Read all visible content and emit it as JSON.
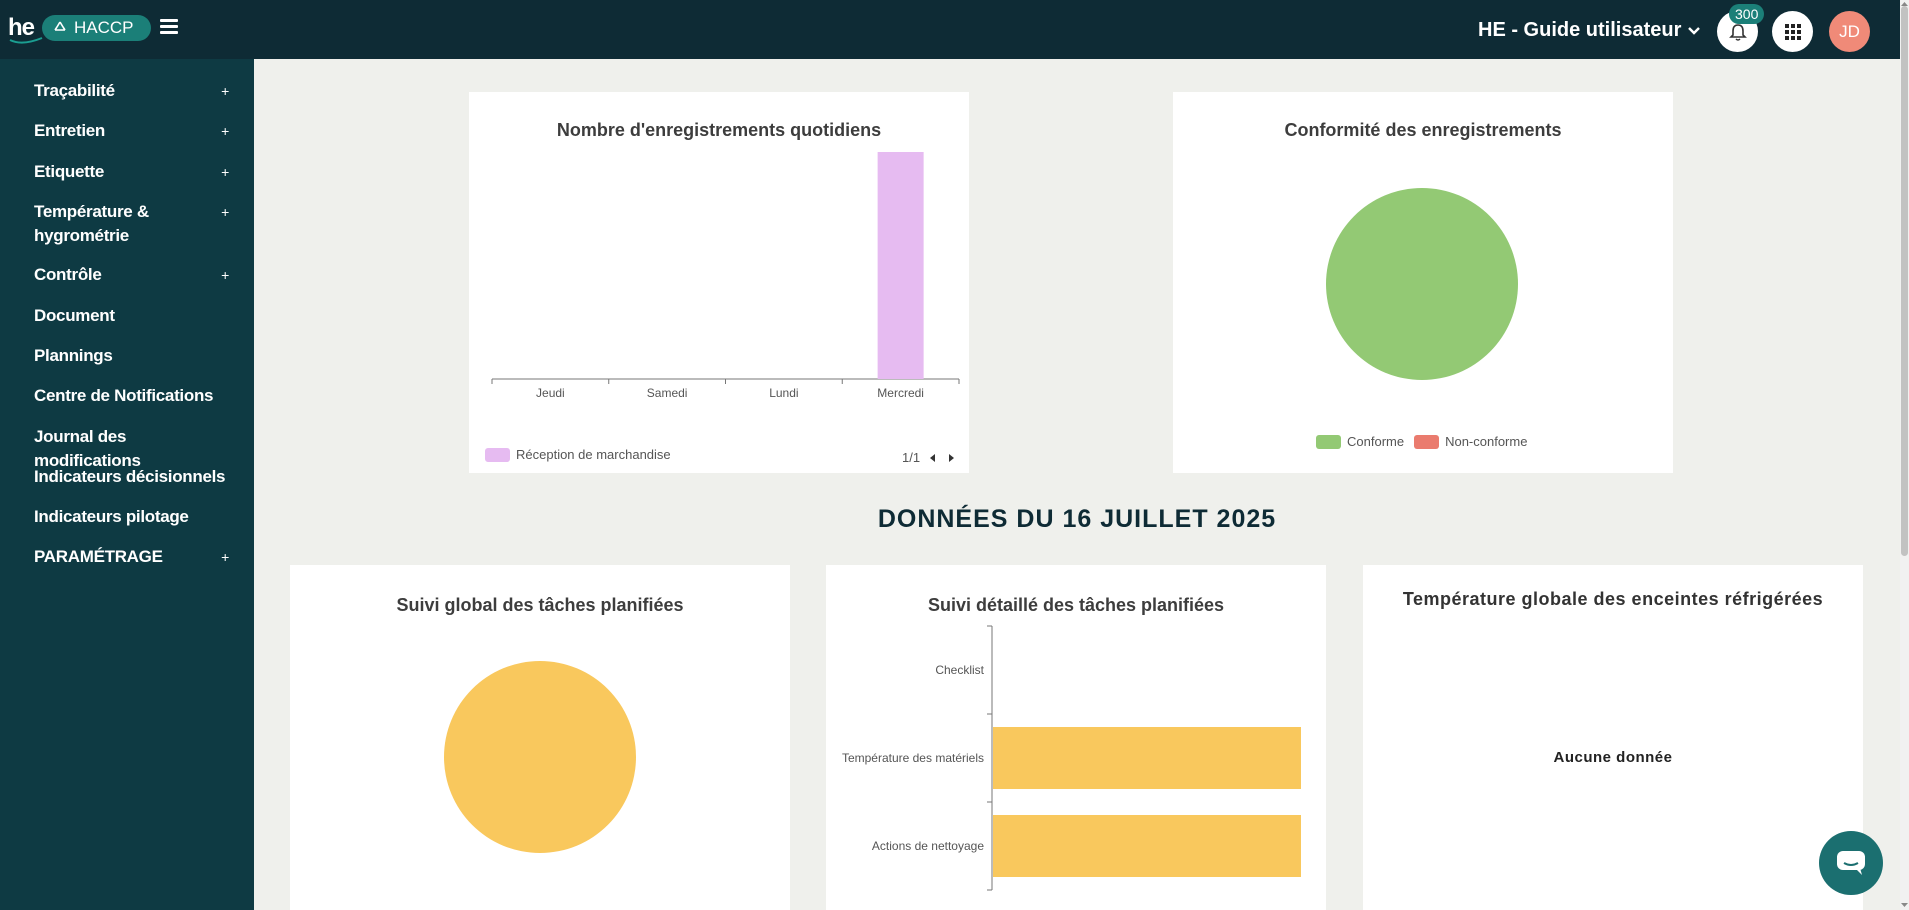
{
  "header": {
    "logo_text": "he",
    "app_name": "HACCP",
    "user_menu_label": "HE - Guide utilisateur",
    "notifications_count": "300",
    "avatar_initials": "JD"
  },
  "sidebar": {
    "items": [
      {
        "label": "Traçabilité",
        "expand": "+"
      },
      {
        "label": "Entretien",
        "expand": "+"
      },
      {
        "label": "Etiquette",
        "expand": "+"
      },
      {
        "label": "Température & hygrométrie",
        "expand": "+"
      },
      {
        "label": "Contrôle",
        "expand": "+"
      },
      {
        "label": "Document",
        "expand": ""
      },
      {
        "label": "Plannings",
        "expand": ""
      },
      {
        "label": "Centre de Notifications",
        "expand": ""
      },
      {
        "label": "Journal des modifications",
        "expand": ""
      },
      {
        "label": "Indicateurs décisionnels",
        "expand": ""
      },
      {
        "label": "Indicateurs pilotage",
        "expand": ""
      },
      {
        "label": "PARAMÉTRAGE",
        "expand": "+"
      }
    ]
  },
  "section_heading": "DONNÉES DU 16 JUILLET 2025",
  "colors": {
    "bar_pink": "#e6bbf1",
    "green": "#93c974",
    "red": "#ea7b6e",
    "yellow": "#f9c85d",
    "teal_dark": "#0e2b35"
  },
  "charts": {
    "daily_records": {
      "title": "Nombre d'enregistrements quotidiens",
      "legend_label": "Réception de marchandise",
      "pager": "1/1"
    },
    "conformity": {
      "title": "Conformité des enregistrements",
      "legend": [
        "Conforme",
        "Non-conforme"
      ]
    },
    "global_tasks": {
      "title": "Suivi global des tâches planifiées"
    },
    "detailed_tasks": {
      "title": "Suivi détaillé des tâches planifiées"
    },
    "fridge_temp": {
      "title": "Température globale des enceintes réfrigérées",
      "empty_text": "Aucune donnée"
    }
  },
  "chart_data": [
    {
      "type": "bar",
      "title": "Nombre d'enregistrements quotidiens",
      "categories": [
        "Jeudi",
        "Samedi",
        "Lundi",
        "Mercredi"
      ],
      "series": [
        {
          "name": "Réception de marchandise",
          "values": [
            0,
            0,
            0,
            1
          ]
        }
      ],
      "legend": "bottom-left"
    },
    {
      "type": "pie",
      "title": "Conformité des enregistrements",
      "labels": [
        "Conforme",
        "Non-conforme"
      ],
      "values": [
        100,
        0
      ],
      "legend": "bottom"
    },
    {
      "type": "pie",
      "title": "Suivi global des tâches planifiées",
      "labels": [
        ""
      ],
      "values": [
        100
      ]
    },
    {
      "type": "bar",
      "orientation": "horizontal",
      "title": "Suivi détaillé des tâches planifiées",
      "categories": [
        "Checklist",
        "Température des matériels",
        "Actions de nettoyage"
      ],
      "values": [
        0,
        1,
        1
      ]
    }
  ]
}
